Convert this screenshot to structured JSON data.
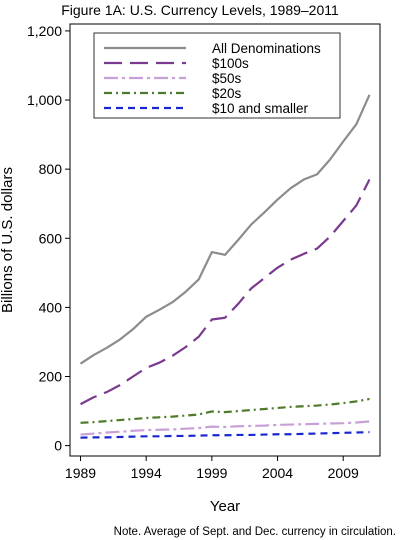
{
  "chart_data": {
    "type": "line",
    "title": "Figure 1A: U.S. Currency Levels, 1989–2011",
    "xlabel": "Year",
    "ylabel": "Billions of U.S. dollars",
    "note": "Note. Average of Sept. and Dec. currency in circulation.",
    "xlim": [
      1988.2,
      2011.8
    ],
    "ylim": [
      -30,
      1220
    ],
    "xticks": [
      1989,
      1994,
      1999,
      2004,
      2009
    ],
    "yticks": [
      0,
      200,
      400,
      600,
      800,
      1000,
      1200
    ],
    "ytick_labels": [
      "0",
      "200",
      "400",
      "600",
      "800",
      "1,000",
      "1,200"
    ],
    "grid": false,
    "legend_position": "top",
    "x": [
      1989,
      1990,
      1991,
      1992,
      1993,
      1994,
      1995,
      1996,
      1997,
      1998,
      1999,
      2000,
      2001,
      2002,
      2003,
      2004,
      2005,
      2006,
      2007,
      2008,
      2009,
      2010,
      2011
    ],
    "series": [
      {
        "name": "All Denominations",
        "color": "#8c8c8c",
        "dash": "",
        "values": [
          237,
          262,
          283,
          307,
          337,
          373,
          393,
          415,
          445,
          481,
          560,
          552,
          595,
          640,
          675,
          712,
          745,
          770,
          785,
          828,
          880,
          930,
          1015
        ]
      },
      {
        "name": "$100s",
        "color": "#7a3a8f",
        "dash": "18,8",
        "values": [
          120,
          140,
          155,
          175,
          200,
          225,
          240,
          260,
          285,
          315,
          365,
          370,
          410,
          455,
          485,
          515,
          538,
          555,
          570,
          605,
          650,
          695,
          770
        ]
      },
      {
        "name": "$50s",
        "color": "#c8a0d8",
        "dash": "14,4,3,4",
        "values": [
          32,
          35,
          38,
          40,
          43,
          45,
          46,
          47,
          49,
          51,
          55,
          54,
          56,
          57,
          58,
          60,
          61,
          62,
          63,
          64,
          65,
          67,
          70
        ]
      },
      {
        "name": "$20s",
        "color": "#4f7a28",
        "dash": "8,4,2,4",
        "values": [
          66,
          68,
          71,
          74,
          77,
          80,
          82,
          84,
          87,
          90,
          99,
          97,
          100,
          103,
          106,
          109,
          112,
          114,
          116,
          119,
          123,
          128,
          135
        ]
      },
      {
        "name": "$10 and smaller",
        "color": "#1a27d0",
        "dash": "7,5",
        "values": [
          23,
          24,
          24,
          25,
          26,
          27,
          27,
          28,
          28,
          29,
          30,
          30,
          31,
          31,
          32,
          33,
          33,
          34,
          35,
          36,
          37,
          38,
          39
        ]
      }
    ]
  }
}
